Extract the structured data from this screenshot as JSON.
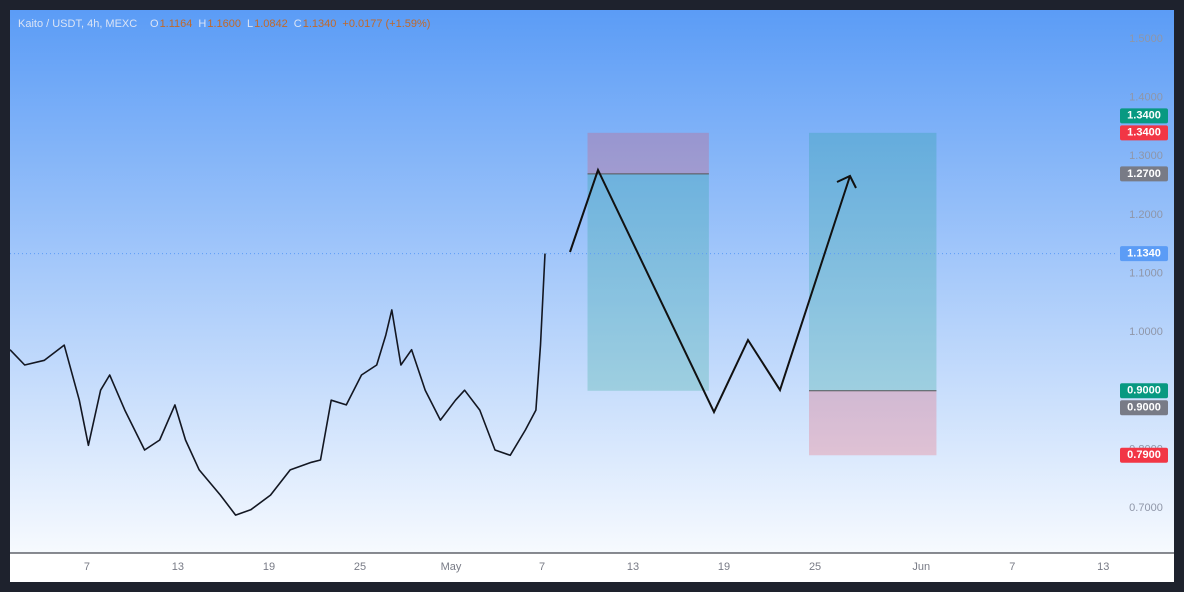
{
  "chart_data": {
    "type": "line",
    "symbol": "Kaito / USDT, 4h, MEXC",
    "ohlc": [
      {
        "label": "O",
        "value": "1.1164"
      },
      {
        "label": "H",
        "value": "1.1600"
      },
      {
        "label": "L",
        "value": "1.0842"
      },
      {
        "label": "C",
        "value": "1.1340"
      }
    ],
    "change": "+0.0177 (+1.59%)",
    "x": [
      1.93,
      2.9,
      4.2,
      5.5,
      6.5,
      7.1,
      7.9,
      8.5,
      9.5,
      10.8,
      11.8,
      12.8,
      13.5,
      14.4,
      15.8,
      16.8,
      17.8,
      19.1,
      20.4,
      21.8,
      22.4,
      23.1,
      24.1,
      25.1,
      26.1,
      26.7,
      27.1,
      27.7,
      28.4,
      29.3,
      30.3,
      31.3,
      31.9,
      32.9,
      33.9,
      34.9,
      35.9,
      36.6,
      36.9,
      37.2
    ],
    "series": [
      {
        "color": "#131722",
        "values": [
          0.97,
          0.944,
          0.952,
          0.978,
          0.884,
          0.807,
          0.901,
          0.927,
          0.867,
          0.799,
          0.816,
          0.876,
          0.816,
          0.765,
          0.722,
          0.688,
          0.697,
          0.722,
          0.765,
          0.778,
          0.782,
          0.884,
          0.876,
          0.927,
          0.944,
          0.995,
          1.038,
          0.944,
          0.97,
          0.901,
          0.85,
          0.884,
          0.901,
          0.867,
          0.799,
          0.79,
          0.833,
          0.867,
          0.978,
          1.134
        ]
      }
    ],
    "xlim": [
      1.93,
      78.66
    ],
    "ylim": [
      0.6233,
      1.5495
    ],
    "xticks": [
      {
        "value": 7,
        "label": "7"
      },
      {
        "value": 13,
        "label": "13"
      },
      {
        "value": 19,
        "label": "19"
      },
      {
        "value": 25,
        "label": "25"
      },
      {
        "value": 31,
        "label": "May"
      },
      {
        "value": 37,
        "label": "7"
      },
      {
        "value": 43,
        "label": "13"
      },
      {
        "value": 49,
        "label": "19"
      },
      {
        "value": 55,
        "label": "25"
      },
      {
        "value": 62,
        "label": "Jun"
      },
      {
        "value": 68,
        "label": "7"
      },
      {
        "value": 74,
        "label": "13"
      }
    ],
    "yticks": [
      {
        "value": 0.7,
        "label": "0.7000"
      },
      {
        "value": 0.8,
        "label": "0.8000"
      },
      {
        "value": 0.9,
        "label": "0.9000"
      },
      {
        "value": 1.0,
        "label": "1.0000"
      },
      {
        "value": 1.1,
        "label": "1.1000"
      },
      {
        "value": 1.2,
        "label": "1.2000"
      },
      {
        "value": 1.3,
        "label": "1.3000"
      },
      {
        "value": 1.4,
        "label": "1.4000"
      },
      {
        "value": 1.5,
        "label": "1.5000"
      }
    ],
    "positions": [
      {
        "start": 40,
        "end": 48,
        "stop": 1.34,
        "entry": 1.27,
        "target": 0.9
      },
      {
        "start": 54.6,
        "end": 63,
        "stop": 0.79,
        "entry": 0.9,
        "target": 1.34
      }
    ],
    "price_tags": [
      {
        "value": 1.34,
        "label": "1.3400",
        "color": "#089981"
      },
      {
        "value": 1.34,
        "label": "1.3400",
        "color": "#f23645"
      },
      {
        "value": 1.27,
        "label": "1.2700",
        "color": "#787b86"
      },
      {
        "value": 1.134,
        "label": "1.1340",
        "color": "#5b9cf6"
      },
      {
        "value": 0.9,
        "label": "0.9000",
        "color": "#089981"
      },
      {
        "value": 0.9,
        "label": "0.9000",
        "color": "#787b86"
      },
      {
        "value": 0.79,
        "label": "0.7900",
        "color": "#f23645"
      }
    ],
    "current_price": 1.134
  }
}
